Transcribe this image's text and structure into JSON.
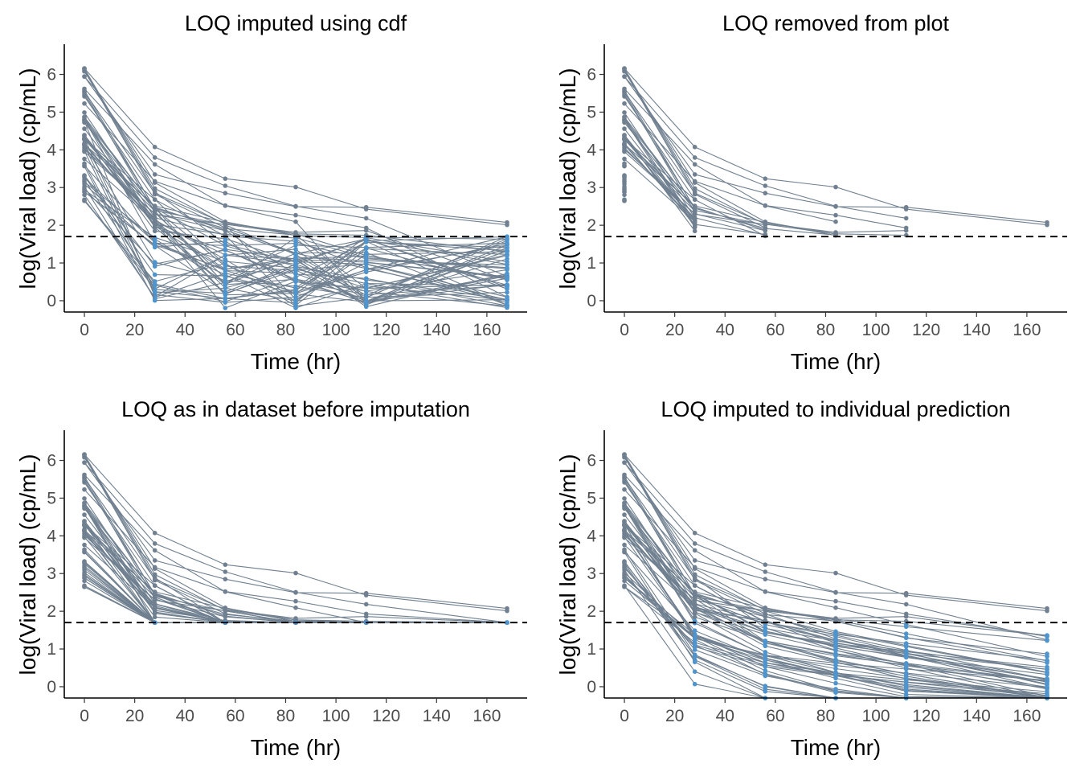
{
  "chart_data": [
    {
      "type": "line",
      "title": "LOQ imputed using cdf",
      "xlabel": "Time (hr)",
      "ylabel": "log(Viral load) (cp/mL)",
      "x_ticks": [
        0,
        20,
        40,
        60,
        80,
        100,
        120,
        140,
        160
      ],
      "y_ticks": [
        0,
        1,
        2,
        3,
        4,
        5,
        6
      ],
      "xlim": [
        -8,
        176
      ],
      "ylim": [
        -0.3,
        6.8
      ],
      "loq": 1.7,
      "times": [
        0,
        28,
        56,
        84,
        112,
        168
      ],
      "imputation": "cdf",
      "series_count": 60,
      "line_color": "#708090",
      "imputed_color": "#4f94cd",
      "grid": false
    },
    {
      "type": "line",
      "title": "LOQ removed from plot",
      "xlabel": "Time (hr)",
      "ylabel": "log(Viral load) (cp/mL)",
      "x_ticks": [
        0,
        20,
        40,
        60,
        80,
        100,
        120,
        140,
        160
      ],
      "y_ticks": [
        0,
        1,
        2,
        3,
        4,
        5,
        6
      ],
      "xlim": [
        -8,
        176
      ],
      "ylim": [
        -0.3,
        6.8
      ],
      "loq": 1.7,
      "times": [
        0,
        28,
        56,
        84,
        112,
        168
      ],
      "imputation": "removed",
      "series_count": 60,
      "line_color": "#708090",
      "imputed_color": "#4f94cd",
      "grid": false
    },
    {
      "type": "line",
      "title": "LOQ as in dataset before imputation",
      "xlabel": "Time (hr)",
      "ylabel": "log(Viral load) (cp/mL)",
      "x_ticks": [
        0,
        20,
        40,
        60,
        80,
        100,
        120,
        140,
        160
      ],
      "y_ticks": [
        0,
        1,
        2,
        3,
        4,
        5,
        6
      ],
      "xlim": [
        -8,
        176
      ],
      "ylim": [
        -0.3,
        6.8
      ],
      "loq": 1.7,
      "times": [
        0,
        28,
        56,
        84,
        112,
        168
      ],
      "imputation": "loq",
      "series_count": 60,
      "line_color": "#708090",
      "imputed_color": "#4f94cd",
      "grid": false
    },
    {
      "type": "line",
      "title": "LOQ imputed to individual prediction",
      "xlabel": "Time (hr)",
      "ylabel": "log(Viral load) (cp/mL)",
      "x_ticks": [
        0,
        20,
        40,
        60,
        80,
        100,
        120,
        140,
        160
      ],
      "y_ticks": [
        0,
        1,
        2,
        3,
        4,
        5,
        6
      ],
      "xlim": [
        -8,
        176
      ],
      "ylim": [
        -0.3,
        6.8
      ],
      "loq": 1.7,
      "times": [
        0,
        28,
        56,
        84,
        112,
        168
      ],
      "imputation": "prediction",
      "series_count": 60,
      "line_color": "#708090",
      "imputed_color": "#4f94cd",
      "grid": false
    }
  ]
}
